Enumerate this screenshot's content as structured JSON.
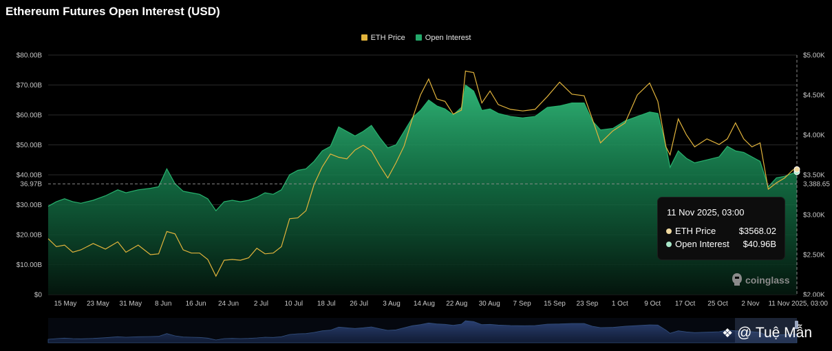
{
  "title": "Ethereum Futures Open Interest (USD)",
  "colors": {
    "background": "#000000",
    "eth_price": "#e2b43c",
    "open_interest": "#23a86a",
    "navigator": "#1c2d52",
    "grid": "#2a2a2a"
  },
  "tooltip": {
    "title": "11 Nov 2025, 03:00",
    "rows": [
      {
        "label": "ETH Price",
        "value": "$3568.02"
      },
      {
        "label": "Open Interest",
        "value": "$40.96B"
      }
    ]
  },
  "crosshair": {
    "y_label": "36.97B",
    "y2_label": "3,388.65",
    "x_label": "11 Nov 2025, 03:00"
  },
  "watermark": "coinglass",
  "credit": "@ Tuệ Mẫn",
  "chart_data": {
    "type": "area",
    "title": "Ethereum Futures Open Interest (USD)",
    "legend": [
      "ETH Price",
      "Open Interest"
    ],
    "legend_position": "top-center",
    "grid": true,
    "y_left": {
      "ticks": [
        "$0",
        "$10.00B",
        "$20.00B",
        "$30.00B",
        "$40.00B",
        "$50.00B",
        "$60.00B",
        "$70.00B",
        "$80.00B"
      ],
      "range": [
        0,
        80
      ],
      "unit": "B USD"
    },
    "y_right": {
      "ticks": [
        "$2.00K",
        "$2.50K",
        "$3.00K",
        "$3.50K",
        "$4.00K",
        "$4.50K",
        "$5.00K"
      ],
      "range": [
        2000,
        5000
      ],
      "unit": "USD"
    },
    "x_ticks": [
      "15 May",
      "23 May",
      "31 May",
      "8 Jun",
      "16 Jun",
      "24 Jun",
      "2 Jul",
      "10 Jul",
      "18 Jul",
      "26 Jul",
      "3 Aug",
      "14 Aug",
      "22 Aug",
      "30 Aug",
      "7 Sep",
      "15 Sep",
      "23 Sep",
      "1 Oct",
      "9 Oct",
      "17 Oct",
      "25 Oct",
      "2 Nov"
    ],
    "x_range": [
      "2025-05-12",
      "2025-11-11"
    ],
    "series": [
      {
        "name": "Open Interest",
        "axis": "left",
        "points": [
          [
            "2025-05-12",
            29.5
          ],
          [
            "2025-05-14",
            31
          ],
          [
            "2025-05-16",
            32
          ],
          [
            "2025-05-18",
            31
          ],
          [
            "2025-05-20",
            30.5
          ],
          [
            "2025-05-23",
            31.5
          ],
          [
            "2025-05-26",
            33
          ],
          [
            "2025-05-29",
            35
          ],
          [
            "2025-05-31",
            34
          ],
          [
            "2025-06-03",
            35
          ],
          [
            "2025-06-06",
            35.5
          ],
          [
            "2025-06-08",
            36
          ],
          [
            "2025-06-10",
            42
          ],
          [
            "2025-06-12",
            37
          ],
          [
            "2025-06-14",
            34.5
          ],
          [
            "2025-06-16",
            34
          ],
          [
            "2025-06-18",
            33.5
          ],
          [
            "2025-06-20",
            32
          ],
          [
            "2025-06-22",
            28
          ],
          [
            "2025-06-24",
            31
          ],
          [
            "2025-06-26",
            31.5
          ],
          [
            "2025-06-28",
            31
          ],
          [
            "2025-06-30",
            31.5
          ],
          [
            "2025-07-02",
            32.5
          ],
          [
            "2025-07-04",
            34
          ],
          [
            "2025-07-06",
            33.5
          ],
          [
            "2025-07-08",
            35
          ],
          [
            "2025-07-10",
            40
          ],
          [
            "2025-07-12",
            41.5
          ],
          [
            "2025-07-14",
            42
          ],
          [
            "2025-07-16",
            44.5
          ],
          [
            "2025-07-18",
            48
          ],
          [
            "2025-07-20",
            49.5
          ],
          [
            "2025-07-22",
            56
          ],
          [
            "2025-07-24",
            54.5
          ],
          [
            "2025-07-26",
            53
          ],
          [
            "2025-07-28",
            54.5
          ],
          [
            "2025-07-30",
            56.5
          ],
          [
            "2025-08-01",
            52.5
          ],
          [
            "2025-08-03",
            49
          ],
          [
            "2025-08-05",
            50
          ],
          [
            "2025-08-07",
            54.5
          ],
          [
            "2025-08-09",
            59
          ],
          [
            "2025-08-11",
            61.5
          ],
          [
            "2025-08-13",
            65
          ],
          [
            "2025-08-15",
            63
          ],
          [
            "2025-08-17",
            62
          ],
          [
            "2025-08-19",
            60
          ],
          [
            "2025-08-21",
            62.5
          ],
          [
            "2025-08-22",
            70
          ],
          [
            "2025-08-24",
            68
          ],
          [
            "2025-08-26",
            61.5
          ],
          [
            "2025-08-28",
            62
          ],
          [
            "2025-08-30",
            60.5
          ],
          [
            "2025-09-02",
            59.5
          ],
          [
            "2025-09-05",
            59
          ],
          [
            "2025-09-08",
            59.5
          ],
          [
            "2025-09-11",
            62.5
          ],
          [
            "2025-09-14",
            63
          ],
          [
            "2025-09-17",
            64
          ],
          [
            "2025-09-20",
            64
          ],
          [
            "2025-09-22",
            58
          ],
          [
            "2025-09-24",
            55
          ],
          [
            "2025-09-27",
            55.5
          ],
          [
            "2025-09-30",
            58
          ],
          [
            "2025-10-03",
            59.5
          ],
          [
            "2025-10-06",
            61
          ],
          [
            "2025-10-08",
            60.5
          ],
          [
            "2025-10-10",
            49.5
          ],
          [
            "2025-10-11",
            42.5
          ],
          [
            "2025-10-13",
            48
          ],
          [
            "2025-10-15",
            45.5
          ],
          [
            "2025-10-17",
            44
          ],
          [
            "2025-10-20",
            45
          ],
          [
            "2025-10-23",
            46
          ],
          [
            "2025-10-25",
            49.5
          ],
          [
            "2025-10-27",
            48
          ],
          [
            "2025-10-29",
            47.5
          ],
          [
            "2025-10-31",
            46
          ],
          [
            "2025-11-02",
            44.5
          ],
          [
            "2025-11-04",
            36
          ],
          [
            "2025-11-06",
            39
          ],
          [
            "2025-11-08",
            39.5
          ],
          [
            "2025-11-10",
            40.5
          ],
          [
            "2025-11-11",
            40.96
          ]
        ]
      },
      {
        "name": "ETH Price",
        "axis": "right",
        "points": [
          [
            "2025-05-12",
            2700
          ],
          [
            "2025-05-14",
            2600
          ],
          [
            "2025-05-16",
            2620
          ],
          [
            "2025-05-18",
            2530
          ],
          [
            "2025-05-20",
            2560
          ],
          [
            "2025-05-23",
            2640
          ],
          [
            "2025-05-26",
            2570
          ],
          [
            "2025-05-29",
            2660
          ],
          [
            "2025-05-31",
            2530
          ],
          [
            "2025-06-03",
            2620
          ],
          [
            "2025-06-06",
            2500
          ],
          [
            "2025-06-08",
            2510
          ],
          [
            "2025-06-10",
            2790
          ],
          [
            "2025-06-12",
            2760
          ],
          [
            "2025-06-14",
            2560
          ],
          [
            "2025-06-16",
            2520
          ],
          [
            "2025-06-18",
            2520
          ],
          [
            "2025-06-20",
            2440
          ],
          [
            "2025-06-22",
            2230
          ],
          [
            "2025-06-24",
            2430
          ],
          [
            "2025-06-26",
            2440
          ],
          [
            "2025-06-28",
            2430
          ],
          [
            "2025-06-30",
            2460
          ],
          [
            "2025-07-02",
            2580
          ],
          [
            "2025-07-04",
            2510
          ],
          [
            "2025-07-06",
            2520
          ],
          [
            "2025-07-08",
            2600
          ],
          [
            "2025-07-10",
            2950
          ],
          [
            "2025-07-12",
            2960
          ],
          [
            "2025-07-14",
            3050
          ],
          [
            "2025-07-16",
            3380
          ],
          [
            "2025-07-18",
            3600
          ],
          [
            "2025-07-20",
            3760
          ],
          [
            "2025-07-22",
            3720
          ],
          [
            "2025-07-24",
            3700
          ],
          [
            "2025-07-26",
            3810
          ],
          [
            "2025-07-28",
            3870
          ],
          [
            "2025-07-30",
            3800
          ],
          [
            "2025-08-01",
            3620
          ],
          [
            "2025-08-03",
            3460
          ],
          [
            "2025-08-05",
            3650
          ],
          [
            "2025-08-07",
            3860
          ],
          [
            "2025-08-09",
            4200
          ],
          [
            "2025-08-11",
            4500
          ],
          [
            "2025-08-13",
            4700
          ],
          [
            "2025-08-15",
            4450
          ],
          [
            "2025-08-17",
            4420
          ],
          [
            "2025-08-19",
            4260
          ],
          [
            "2025-08-21",
            4310
          ],
          [
            "2025-08-22",
            4800
          ],
          [
            "2025-08-24",
            4780
          ],
          [
            "2025-08-26",
            4400
          ],
          [
            "2025-08-28",
            4550
          ],
          [
            "2025-08-30",
            4380
          ],
          [
            "2025-09-02",
            4320
          ],
          [
            "2025-09-05",
            4300
          ],
          [
            "2025-09-08",
            4320
          ],
          [
            "2025-09-11",
            4480
          ],
          [
            "2025-09-14",
            4660
          ],
          [
            "2025-09-17",
            4510
          ],
          [
            "2025-09-20",
            4490
          ],
          [
            "2025-09-22",
            4200
          ],
          [
            "2025-09-24",
            3900
          ],
          [
            "2025-09-27",
            4050
          ],
          [
            "2025-09-30",
            4150
          ],
          [
            "2025-10-03",
            4500
          ],
          [
            "2025-10-06",
            4650
          ],
          [
            "2025-10-08",
            4420
          ],
          [
            "2025-10-10",
            3850
          ],
          [
            "2025-10-11",
            3750
          ],
          [
            "2025-10-13",
            4200
          ],
          [
            "2025-10-15",
            4000
          ],
          [
            "2025-10-17",
            3850
          ],
          [
            "2025-10-20",
            3950
          ],
          [
            "2025-10-23",
            3880
          ],
          [
            "2025-10-25",
            3950
          ],
          [
            "2025-10-27",
            4150
          ],
          [
            "2025-10-29",
            3950
          ],
          [
            "2025-10-31",
            3850
          ],
          [
            "2025-11-02",
            3900
          ],
          [
            "2025-11-04",
            3320
          ],
          [
            "2025-11-06",
            3400
          ],
          [
            "2025-11-08",
            3460
          ],
          [
            "2025-11-10",
            3560
          ],
          [
            "2025-11-11",
            3568.02
          ]
        ]
      }
    ]
  }
}
